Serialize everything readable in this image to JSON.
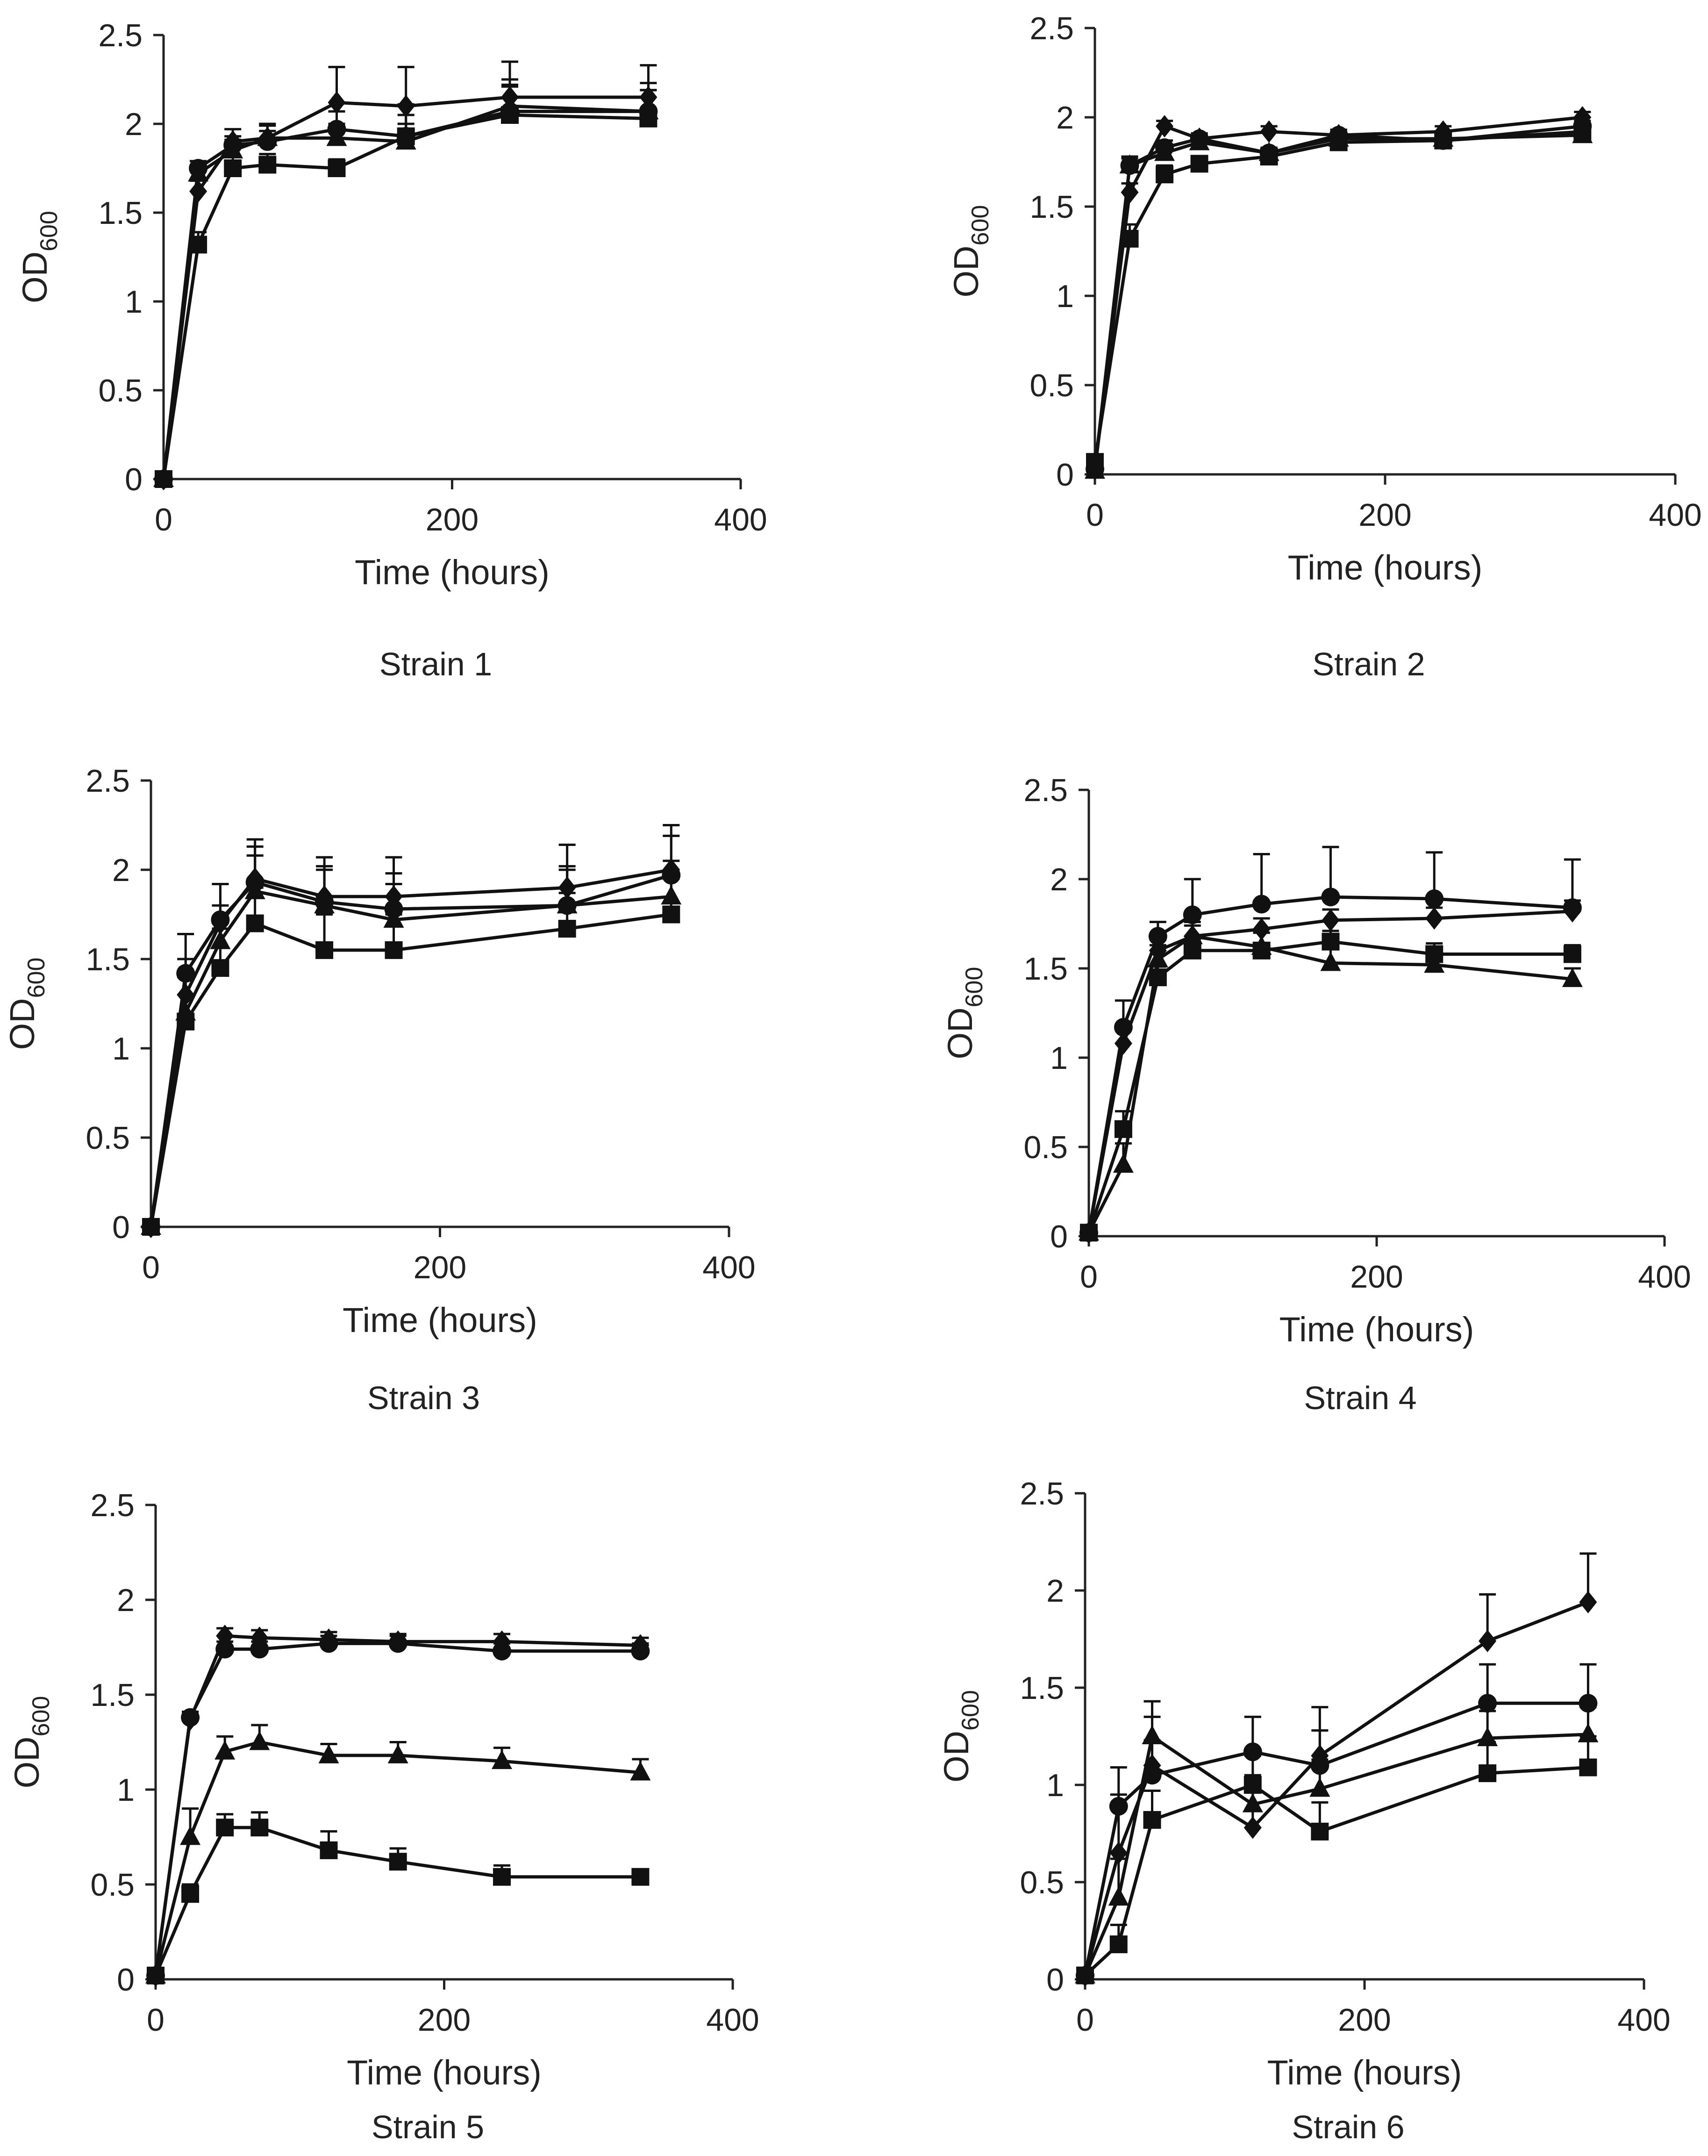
{
  "figure": {
    "ylabel_main": "OD",
    "ylabel_sub": "600"
  },
  "chart_data": [
    {
      "type": "line",
      "title": "Strain 1",
      "xlabel": "Time (hours)",
      "ylabel": "OD600",
      "xlim": [
        0,
        400
      ],
      "ylim": [
        0,
        2.5
      ],
      "x_ticks": [
        "0",
        "200",
        "400"
      ],
      "y_ticks": [
        "0",
        "0.5",
        "1",
        "1.5",
        "2",
        "2.5"
      ],
      "series": [
        {
          "name": "diamond",
          "marker": "diamond",
          "x": [
            0,
            24,
            48,
            72,
            120,
            168,
            240,
            336
          ],
          "values": [
            0,
            1.62,
            1.9,
            1.92,
            2.12,
            2.1,
            2.15,
            2.15
          ],
          "errors": [
            0,
            0.06,
            0.07,
            0.08,
            0.2,
            0.22,
            0.2,
            0.18
          ]
        },
        {
          "name": "square",
          "marker": "square",
          "x": [
            0,
            24,
            48,
            72,
            120,
            168,
            240,
            336
          ],
          "values": [
            0,
            1.32,
            1.75,
            1.77,
            1.75,
            1.93,
            2.05,
            2.03
          ],
          "errors": [
            0,
            0.07,
            0.07,
            0.06,
            0.05,
            0.18,
            0.17,
            0.2
          ]
        },
        {
          "name": "triangle",
          "marker": "triangle",
          "x": [
            0,
            24,
            48,
            72,
            120,
            168,
            240,
            336
          ],
          "values": [
            0,
            1.72,
            1.85,
            1.92,
            1.92,
            1.9,
            2.1,
            2.07
          ],
          "errors": [
            0,
            0.05,
            0.06,
            0.07,
            0.08,
            0.1,
            0.15,
            0.12
          ]
        },
        {
          "name": "circle",
          "marker": "circle",
          "x": [
            0,
            24,
            48,
            72,
            120,
            168,
            240,
            336
          ],
          "values": [
            0,
            1.75,
            1.88,
            1.9,
            1.97,
            1.93,
            2.07,
            2.07
          ],
          "errors": [
            0,
            0.04,
            0.05,
            0.06,
            0.1,
            0.12,
            0.14,
            0.12
          ]
        }
      ]
    },
    {
      "type": "line",
      "title": "Strain 2",
      "xlabel": "Time (hours)",
      "ylabel": "OD600",
      "xlim": [
        0,
        400
      ],
      "ylim": [
        0,
        2.5
      ],
      "x_ticks": [
        "0",
        "200",
        "400"
      ],
      "y_ticks": [
        "0",
        "0.5",
        "1",
        "1.5",
        "2",
        "2.5"
      ],
      "series": [
        {
          "name": "diamond",
          "marker": "diamond",
          "x": [
            0,
            24,
            48,
            72,
            120,
            168,
            240,
            336
          ],
          "values": [
            0.03,
            1.58,
            1.95,
            1.88,
            1.92,
            1.9,
            1.92,
            2.0
          ],
          "errors": [
            0,
            0.05,
            0.03,
            0.03,
            0.03,
            0.03,
            0.03,
            0.03
          ]
        },
        {
          "name": "square",
          "marker": "square",
          "x": [
            0,
            24,
            48,
            72,
            120,
            168,
            240,
            336
          ],
          "values": [
            0.07,
            1.32,
            1.68,
            1.74,
            1.78,
            1.86,
            1.87,
            1.92
          ],
          "errors": [
            0,
            0.08,
            0.05,
            0.04,
            0.03,
            0.03,
            0.03,
            0.03
          ]
        },
        {
          "name": "triangle",
          "marker": "triangle",
          "x": [
            0,
            24,
            48,
            72,
            120,
            168,
            240,
            336
          ],
          "values": [
            0.02,
            1.73,
            1.8,
            1.86,
            1.8,
            1.88,
            1.88,
            1.9
          ],
          "errors": [
            0,
            0.05,
            0.04,
            0.04,
            0.03,
            0.03,
            0.03,
            0.03
          ]
        },
        {
          "name": "circle",
          "marker": "circle",
          "x": [
            0,
            24,
            48,
            72,
            120,
            168,
            240,
            336
          ],
          "values": [
            0.03,
            1.73,
            1.83,
            1.88,
            1.8,
            1.9,
            1.87,
            1.95
          ],
          "errors": [
            0,
            0.04,
            0.04,
            0.03,
            0.03,
            0.03,
            0.03,
            0.03
          ]
        }
      ]
    },
    {
      "type": "line",
      "title": "Strain 3",
      "xlabel": "Time (hours)",
      "ylabel": "OD600",
      "xlim": [
        0,
        400
      ],
      "ylim": [
        0,
        2.5
      ],
      "x_ticks": [
        "0",
        "200",
        "400"
      ],
      "y_ticks": [
        "0",
        "0.5",
        "1",
        "1.5",
        "2",
        "2.5"
      ],
      "series": [
        {
          "name": "diamond",
          "marker": "diamond",
          "x": [
            0,
            24,
            48,
            72,
            120,
            168,
            288,
            360
          ],
          "values": [
            0,
            1.3,
            1.7,
            1.95,
            1.85,
            1.85,
            1.9,
            2.0
          ],
          "errors": [
            0,
            0.2,
            0.22,
            0.22,
            0.22,
            0.22,
            0.24,
            0.25
          ]
        },
        {
          "name": "square",
          "marker": "square",
          "x": [
            0,
            24,
            48,
            72,
            120,
            168,
            288,
            360
          ],
          "values": [
            0,
            1.15,
            1.45,
            1.7,
            1.55,
            1.55,
            1.67,
            1.75
          ],
          "errors": [
            0,
            0.25,
            0.22,
            0.2,
            0.2,
            0.2,
            0.2,
            0.2
          ]
        },
        {
          "name": "triangle",
          "marker": "triangle",
          "x": [
            0,
            24,
            48,
            72,
            120,
            168,
            288,
            360
          ],
          "values": [
            0,
            1.2,
            1.6,
            1.88,
            1.8,
            1.72,
            1.8,
            1.85
          ],
          "errors": [
            0,
            0.2,
            0.2,
            0.2,
            0.2,
            0.2,
            0.2,
            0.2
          ]
        },
        {
          "name": "circle",
          "marker": "circle",
          "x": [
            0,
            24,
            48,
            72,
            120,
            168,
            288,
            360
          ],
          "values": [
            0,
            1.42,
            1.72,
            1.93,
            1.82,
            1.78,
            1.8,
            1.97
          ],
          "errors": [
            0,
            0.22,
            0.2,
            0.2,
            0.2,
            0.2,
            0.22,
            0.22
          ]
        }
      ]
    },
    {
      "type": "line",
      "title": "Strain 4",
      "xlabel": "Time (hours)",
      "ylabel": "OD600",
      "xlim": [
        0,
        400
      ],
      "ylim": [
        0,
        2.5
      ],
      "x_ticks": [
        "0",
        "200",
        "400"
      ],
      "y_ticks": [
        "0",
        "0.5",
        "1",
        "1.5",
        "2",
        "2.5"
      ],
      "series": [
        {
          "name": "diamond",
          "marker": "diamond",
          "x": [
            0,
            24,
            48,
            72,
            120,
            168,
            240,
            336
          ],
          "values": [
            0.02,
            1.08,
            1.6,
            1.68,
            1.72,
            1.77,
            1.78,
            1.82
          ],
          "errors": [
            0,
            0.08,
            0.06,
            0.06,
            0.06,
            0.06,
            0.06,
            0.06
          ]
        },
        {
          "name": "square",
          "marker": "square",
          "x": [
            0,
            24,
            48,
            72,
            120,
            168,
            240,
            336
          ],
          "values": [
            0.02,
            0.6,
            1.45,
            1.6,
            1.6,
            1.65,
            1.58,
            1.58
          ],
          "errors": [
            0,
            0.1,
            0.06,
            0.06,
            0.1,
            0.06,
            0.06,
            0.05
          ]
        },
        {
          "name": "triangle",
          "marker": "triangle",
          "x": [
            0,
            24,
            48,
            72,
            120,
            168,
            240,
            336
          ],
          "values": [
            0.02,
            0.4,
            1.55,
            1.68,
            1.62,
            1.53,
            1.52,
            1.44
          ],
          "errors": [
            0,
            0.12,
            0.08,
            0.08,
            0.08,
            0.08,
            0.08,
            0.06
          ]
        },
        {
          "name": "circle",
          "marker": "circle",
          "x": [
            0,
            24,
            48,
            72,
            120,
            168,
            240,
            336
          ],
          "values": [
            0.02,
            1.17,
            1.68,
            1.8,
            1.86,
            1.9,
            1.89,
            1.84
          ],
          "errors": [
            0,
            0.15,
            0.08,
            0.2,
            0.28,
            0.28,
            0.26,
            0.27
          ]
        }
      ]
    },
    {
      "type": "line",
      "title": "Strain 5",
      "xlabel": "Time (hours)",
      "ylabel": "OD600",
      "xlim": [
        0,
        400
      ],
      "ylim": [
        0,
        2.5
      ],
      "x_ticks": [
        "0",
        "200",
        "400"
      ],
      "y_ticks": [
        "0",
        "0.5",
        "1",
        "1.5",
        "2",
        "2.5"
      ],
      "series": [
        {
          "name": "diamond",
          "marker": "diamond",
          "x": [
            0,
            24,
            48,
            72,
            120,
            168,
            240,
            336
          ],
          "values": [
            0.02,
            1.37,
            1.81,
            1.8,
            1.79,
            1.78,
            1.78,
            1.76
          ],
          "errors": [
            0,
            0.04,
            0.04,
            0.04,
            0.04,
            0.04,
            0.04,
            0.04
          ]
        },
        {
          "name": "square",
          "marker": "square",
          "x": [
            0,
            24,
            48,
            72,
            120,
            168,
            240,
            336
          ],
          "values": [
            0.02,
            0.45,
            0.8,
            0.8,
            0.68,
            0.62,
            0.54,
            0.54
          ],
          "errors": [
            0,
            0.05,
            0.07,
            0.08,
            0.1,
            0.07,
            0.06,
            0.03
          ]
        },
        {
          "name": "triangle",
          "marker": "triangle",
          "x": [
            0,
            24,
            48,
            72,
            120,
            168,
            240,
            336
          ],
          "values": [
            0.02,
            0.75,
            1.2,
            1.25,
            1.18,
            1.18,
            1.15,
            1.09
          ],
          "errors": [
            0,
            0.15,
            0.08,
            0.09,
            0.06,
            0.07,
            0.07,
            0.07
          ]
        },
        {
          "name": "circle",
          "marker": "circle",
          "x": [
            0,
            24,
            48,
            72,
            120,
            168,
            240,
            336
          ],
          "values": [
            0.02,
            1.38,
            1.74,
            1.74,
            1.77,
            1.77,
            1.73,
            1.73
          ],
          "errors": [
            0,
            0.03,
            0.04,
            0.04,
            0.04,
            0.04,
            0.04,
            0.04
          ]
        }
      ]
    },
    {
      "type": "line",
      "title": "Strain 6",
      "xlabel": "Time (hours)",
      "ylabel": "OD600",
      "xlim": [
        0,
        400
      ],
      "ylim": [
        0,
        2.5
      ],
      "x_ticks": [
        "0",
        "200",
        "400"
      ],
      "y_ticks": [
        "0",
        "0.5",
        "1",
        "1.5",
        "2",
        "2.5"
      ],
      "series": [
        {
          "name": "diamond",
          "marker": "diamond",
          "x": [
            0,
            24,
            48,
            120,
            168,
            288,
            360
          ],
          "values": [
            0.02,
            0.65,
            1.1,
            0.78,
            1.15,
            1.74,
            1.94
          ],
          "errors": [
            0,
            0.3,
            0.25,
            0.25,
            0.25,
            0.24,
            0.25
          ]
        },
        {
          "name": "square",
          "marker": "square",
          "x": [
            0,
            24,
            48,
            120,
            168,
            288,
            360
          ],
          "values": [
            0.02,
            0.18,
            0.82,
            1.0,
            0.76,
            1.06,
            1.09
          ],
          "errors": [
            0,
            0.1,
            0.15,
            0.15,
            0.15,
            0.16,
            0.16
          ]
        },
        {
          "name": "triangle",
          "marker": "triangle",
          "x": [
            0,
            24,
            48,
            120,
            168,
            288,
            360
          ],
          "values": [
            0.02,
            0.42,
            1.25,
            0.9,
            0.98,
            1.24,
            1.26
          ],
          "errors": [
            0,
            0.2,
            0.18,
            0.15,
            0.15,
            0.14,
            0.14
          ]
        },
        {
          "name": "circle",
          "marker": "circle",
          "x": [
            0,
            24,
            48,
            120,
            168,
            288,
            360
          ],
          "values": [
            0.02,
            0.89,
            1.05,
            1.17,
            1.1,
            1.42,
            1.42
          ],
          "errors": [
            0,
            0.2,
            0.18,
            0.18,
            0.18,
            0.2,
            0.2
          ]
        }
      ]
    }
  ]
}
